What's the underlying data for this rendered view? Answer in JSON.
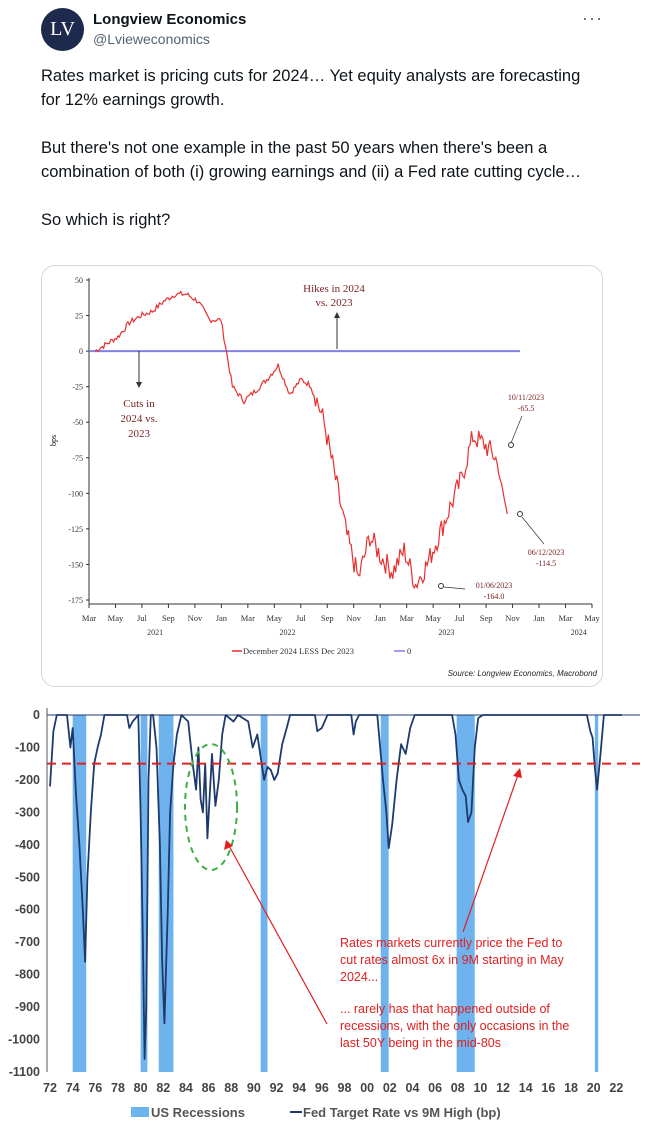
{
  "header": {
    "avatar_text": "LV",
    "display_name": "Longview Economics",
    "handle": "@Lvieweconomics",
    "more_label": "···"
  },
  "tweet": {
    "p1": "Rates market is pricing cuts for 2024… Yet equity analysts are forecasting for 12% earnings growth.",
    "p2": "But there's not one example in the past 50 years when there's been a combination of both (i) growing earnings and (ii) a Fed rate cutting cycle…",
    "p3": "So which is right?"
  },
  "chart1": {
    "chart_data": {
      "type": "line",
      "ylabel": "bps",
      "ylim": [
        -175,
        50
      ],
      "y_ticks": [
        "50",
        "25",
        "0",
        "-25",
        "-50",
        "-75",
        "-100",
        "-125",
        "-150",
        "-175"
      ],
      "x_ticks": [
        "Mar",
        "May",
        "Jul",
        "Sep",
        "Nov",
        "Jan",
        "Mar",
        "May",
        "Jul",
        "Sep",
        "Nov",
        "Jan",
        "Mar",
        "May",
        "Jul",
        "Sep",
        "Nov",
        "Jan",
        "Mar",
        "May"
      ],
      "year_labels": [
        "2021",
        "2022",
        "2023",
        "2024"
      ],
      "series": [
        {
          "name": "December 2024 LESS Dec 2023",
          "color": "#e8312f",
          "values": [
            0,
            5,
            10,
            20,
            25,
            28,
            35,
            40,
            40,
            35,
            22,
            22,
            -25,
            -35,
            -28,
            -20,
            -10,
            -30,
            -20,
            -25,
            -50,
            -90,
            -130,
            -160,
            -130,
            -145,
            -155,
            -140,
            -164,
            -150,
            -130,
            -110,
            -90,
            -60,
            -65.5,
            -75,
            -114.5
          ]
        },
        {
          "name": "0",
          "color": "#8080e8",
          "values": [
            0,
            0
          ]
        }
      ],
      "annotations": {
        "hikes": "Hikes in 2024 vs. 2023",
        "cuts": "Cuts in 2024 vs. 2023",
        "point_oct": "10/11/2023 -65.5",
        "point_dec": "06/12/2023 -114.5",
        "point_jun": "01/06/2023 -164.0"
      },
      "legend": {
        "line1": "December 2024 LESS Dec 2023",
        "line2": "0"
      },
      "source": "Source: Longview Economics, Macrobond"
    }
  },
  "chart2": {
    "chart_data": {
      "type": "area",
      "ylim": [
        -1100,
        0
      ],
      "y_ticks": [
        "0",
        "-100",
        "-200",
        "-300",
        "-400",
        "-500",
        "-600",
        "-700",
        "-800",
        "-900",
        "-1000",
        "-1100"
      ],
      "x_ticks": [
        "72",
        "74",
        "76",
        "78",
        "80",
        "82",
        "84",
        "86",
        "88",
        "90",
        "92",
        "94",
        "96",
        "98",
        "00",
        "02",
        "04",
        "06",
        "08",
        "10",
        "12",
        "14",
        "16",
        "18",
        "20",
        "22"
      ],
      "threshold": -150,
      "series": [
        {
          "name": "US Recessions",
          "color": "#6fb3ee"
        },
        {
          "name": "Fed Target Rate vs 9M High (bp)",
          "color": "#1c3a6b"
        }
      ],
      "recessions": [
        [
          74.0,
          75.2
        ],
        [
          80.0,
          80.6
        ],
        [
          81.6,
          82.9
        ],
        [
          90.6,
          91.2
        ],
        [
          2001.2,
          2001.9
        ],
        [
          2007.9,
          2009.5
        ],
        [
          2020.1,
          2020.4
        ]
      ],
      "annotation1": "Rates markets currently price the Fed to cut rates almost 6x in 9M starting in May 2024...",
      "annotation2": "... rarely has that happened outside of recessions, with the only occasions in the last 50Y being in the mid-80s",
      "legend": {
        "rec": "US Recessions",
        "line": "Fed Target Rate vs 9M High (bp)"
      }
    }
  }
}
